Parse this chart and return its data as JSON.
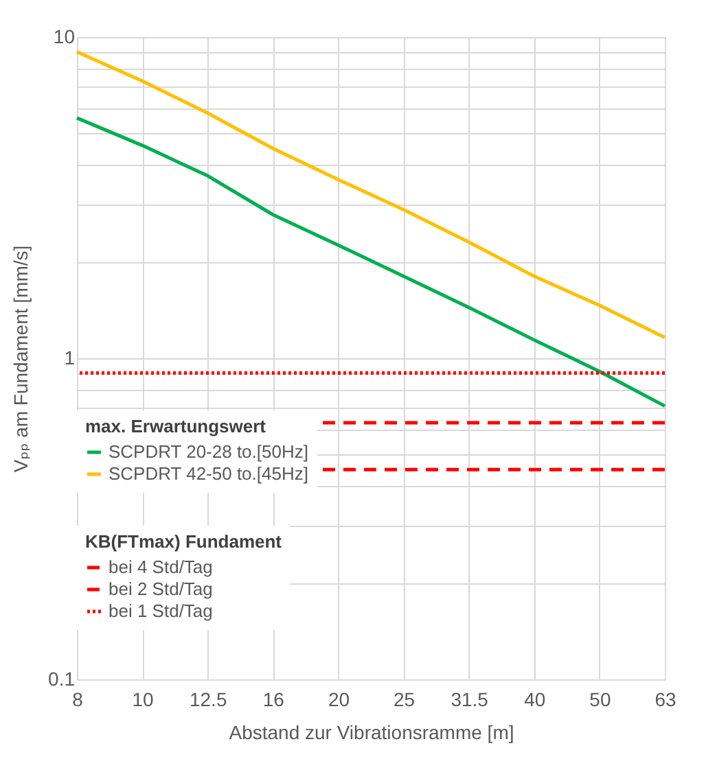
{
  "chart_data": {
    "type": "line",
    "xlabel": "Abstand zur Vibrationsramme [m]",
    "ylabel": "Vₚₚ am Fundament [mm/s]",
    "legend_title": "max. Erwartungswert",
    "annotations": [
      "KB(FTmax) Fundament"
    ],
    "categories": [
      "8",
      "10",
      "12.5",
      "16",
      "20",
      "25",
      "31.5",
      "40",
      "50",
      "63"
    ],
    "series": [
      {
        "name": "SCPDRT 20-28 to.[50Hz]",
        "color": "#00b050",
        "values": [
          5.6,
          4.6,
          3.7,
          2.8,
          2.25,
          1.8,
          1.44,
          1.14,
          0.91,
          0.71
        ]
      },
      {
        "name": "SCPDRT 42-50 to.[45Hz]",
        "color": "#ffc000",
        "values": [
          9.0,
          7.3,
          5.8,
          4.5,
          3.6,
          2.9,
          2.3,
          1.8,
          1.46,
          1.16
        ]
      }
    ],
    "ref_lines": [
      {
        "axis": "y",
        "value": 0.45,
        "label": "bei 4 Std/Tag",
        "color": "#ff0000",
        "line_style": "dashed"
      },
      {
        "axis": "y",
        "value": 0.63,
        "label": "bei 2 Std/Tag",
        "color": "#ff0000",
        "line_style": "dashed"
      },
      {
        "axis": "y",
        "value": 0.9,
        "label": "bei 1 Std/Tag",
        "color": "#ff0000",
        "line_style": "dotted"
      }
    ],
    "log": "y",
    "ylim": [
      0.1,
      10
    ],
    "yticks": [
      0.1,
      {
        "value": 0.2,
        "label": null
      },
      {
        "value": 0.3,
        "label": null
      },
      {
        "value": 0.4,
        "label": null
      },
      {
        "value": 0.5,
        "label": null
      },
      {
        "value": 0.6,
        "label": null
      },
      {
        "value": 0.7,
        "label": null
      },
      {
        "value": 0.8,
        "label": null
      },
      {
        "value": 0.9,
        "label": null
      },
      1,
      {
        "value": 2,
        "label": null
      },
      {
        "value": 3,
        "label": null
      },
      {
        "value": 4,
        "label": null
      },
      {
        "value": 5,
        "label": null
      },
      {
        "value": 6,
        "label": null
      },
      {
        "value": 7,
        "label": null
      },
      {
        "value": 8,
        "label": null
      },
      {
        "value": 9,
        "label": null
      },
      10
    ],
    "grid": true,
    "legend": "bottom left",
    "line_style": "solid",
    "marker": "none"
  }
}
